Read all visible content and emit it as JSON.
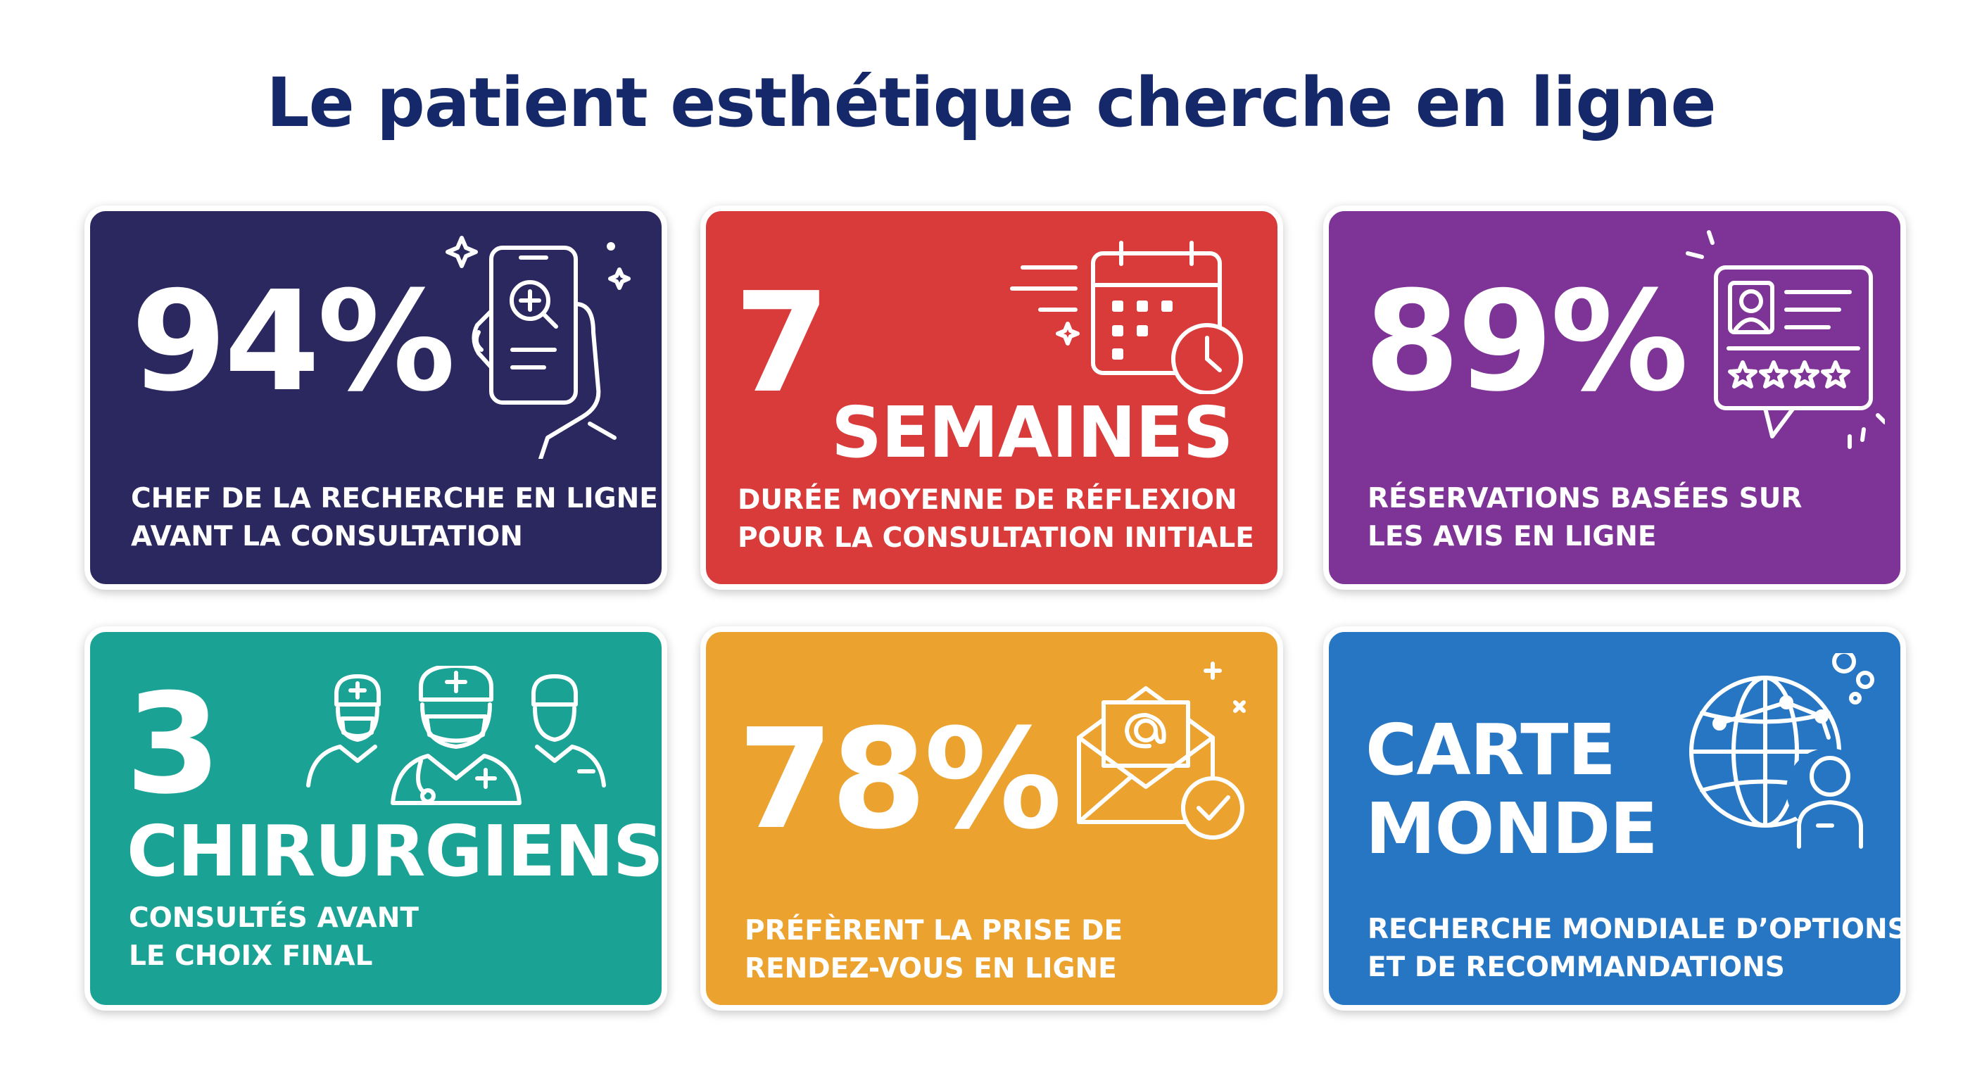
{
  "title": "Le patient esthétique cherche en ligne",
  "cards": [
    {
      "stat": "94%",
      "lines": [
        "CHEF DE LA RECHERCHE EN LIGNE",
        "AVANT LA CONSULTATION"
      ],
      "icon": "smartphone-search-icon",
      "color": "#2b2860"
    },
    {
      "stat": "7",
      "stat_unit": "SEMAINES",
      "lines": [
        "DURÉE MOYENNE DE RÉFLEXION",
        "POUR LA CONSULTATION INITIALE"
      ],
      "icon": "calendar-clock-icon",
      "color": "#d93a3a"
    },
    {
      "stat": "89%",
      "lines": [
        "RÉSERVATIONS BASÉES SUR",
        "LES AVIS EN LIGNE"
      ],
      "icon": "review-profile-stars-icon",
      "color": "#7d3496"
    },
    {
      "stat": "3",
      "stat_unit": "CHIRURGIENS",
      "lines": [
        "CONSULTÉS AVANT",
        "LE CHOIX FINAL"
      ],
      "icon": "surgeons-group-icon",
      "color": "#1aa294"
    },
    {
      "stat": "78%",
      "lines": [
        "PRÉFÈRENT LA PRISE DE",
        "RENDEZ-VOUS EN LIGNE"
      ],
      "icon": "email-check-icon",
      "color": "#eba22f"
    },
    {
      "stat_lines": [
        "CARTE",
        "MONDE"
      ],
      "lines": [
        "RECHERCHE MONDIALE D’OPTIONS",
        "ET DE RECOMMANDATIONS"
      ],
      "icon": "globe-network-person-icon",
      "color": "#2776c4"
    }
  ]
}
